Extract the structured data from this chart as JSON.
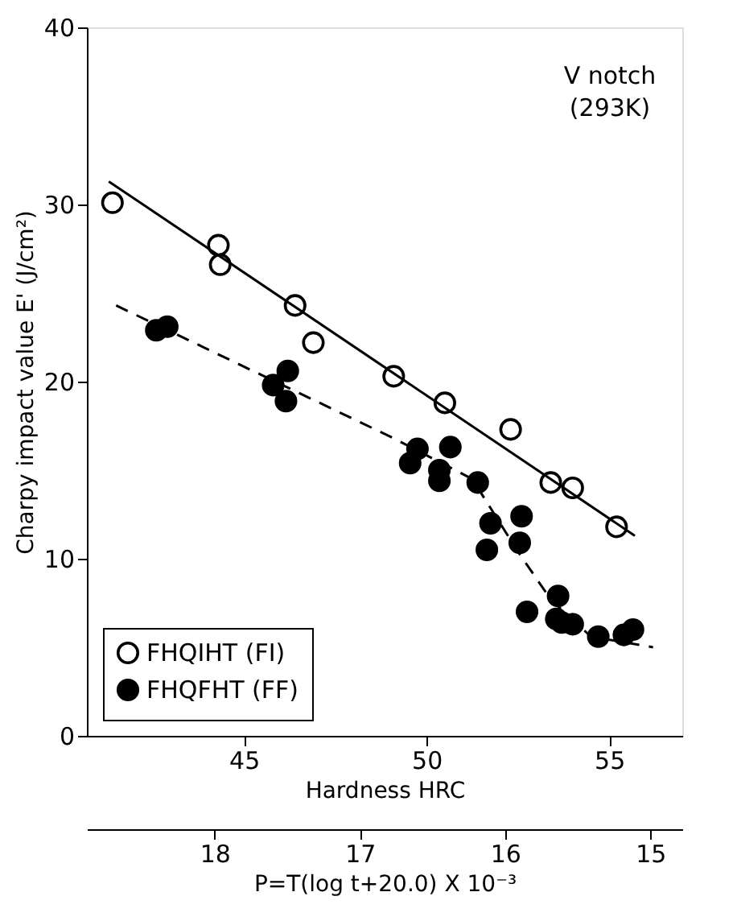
{
  "chart_data": {
    "type": "scatter",
    "xlabel": "Hardness HRC",
    "ylabel": "Charpy impact value E' (J/cm²)",
    "x2label": "P=T(log t+20.0) X 10⁻³",
    "xlim": [
      40.7,
      57
    ],
    "xticks": [
      45,
      50,
      55
    ],
    "ylim": [
      0,
      40
    ],
    "yticks": [
      0,
      10,
      20,
      30,
      40
    ],
    "x2lim": [
      18.88,
      14.78
    ],
    "x2ticks": [
      18,
      17,
      16,
      15
    ],
    "grid": false,
    "legend": "bottom left",
    "annotations": [
      "V notch",
      "(293K)"
    ],
    "series": [
      {
        "name": "FHQIHT (FI)",
        "marker": "circle",
        "color": "#000000",
        "x": [
          41.4,
          44.3,
          44.35,
          46.4,
          46.9,
          49.1,
          50.5,
          52.3,
          53.4,
          54.0,
          55.2
        ],
        "values": [
          30.1,
          27.7,
          26.6,
          24.3,
          22.2,
          20.3,
          18.8,
          17.3,
          14.3,
          14.0,
          11.8
        ]
      },
      {
        "name": "FHQFHT (FF)",
        "marker": "circle",
        "color": "#000000",
        "x": [
          42.6,
          42.9,
          45.8,
          46.2,
          46.15,
          49.55,
          49.75,
          50.35,
          50.35,
          50.65,
          51.4,
          51.75,
          51.65,
          52.6,
          52.55,
          52.75,
          53.6,
          53.55,
          53.7,
          54.0,
          54.7,
          55.4,
          55.65
        ],
        "values": [
          22.9,
          23.1,
          19.8,
          20.6,
          18.9,
          15.4,
          16.2,
          15.0,
          14.4,
          16.3,
          14.3,
          12.0,
          10.5,
          12.4,
          10.9,
          7.0,
          7.9,
          6.6,
          6.4,
          6.3,
          5.6,
          5.7,
          6.0
        ]
      },
      {
        "type": "line",
        "line_style": "solid",
        "color": "#000000",
        "x": [
          41.3,
          55.7
        ],
        "values": [
          31.3,
          11.3
        ]
      },
      {
        "type": "line",
        "line_style": "dashed",
        "color": "#000000",
        "x": [
          41.5,
          49.1,
          51.25,
          52.5,
          53.4,
          54.5,
          56.2
        ],
        "values": [
          24.3,
          16.8,
          14.5,
          10.4,
          7.7,
          5.6,
          5.0
        ]
      }
    ]
  }
}
